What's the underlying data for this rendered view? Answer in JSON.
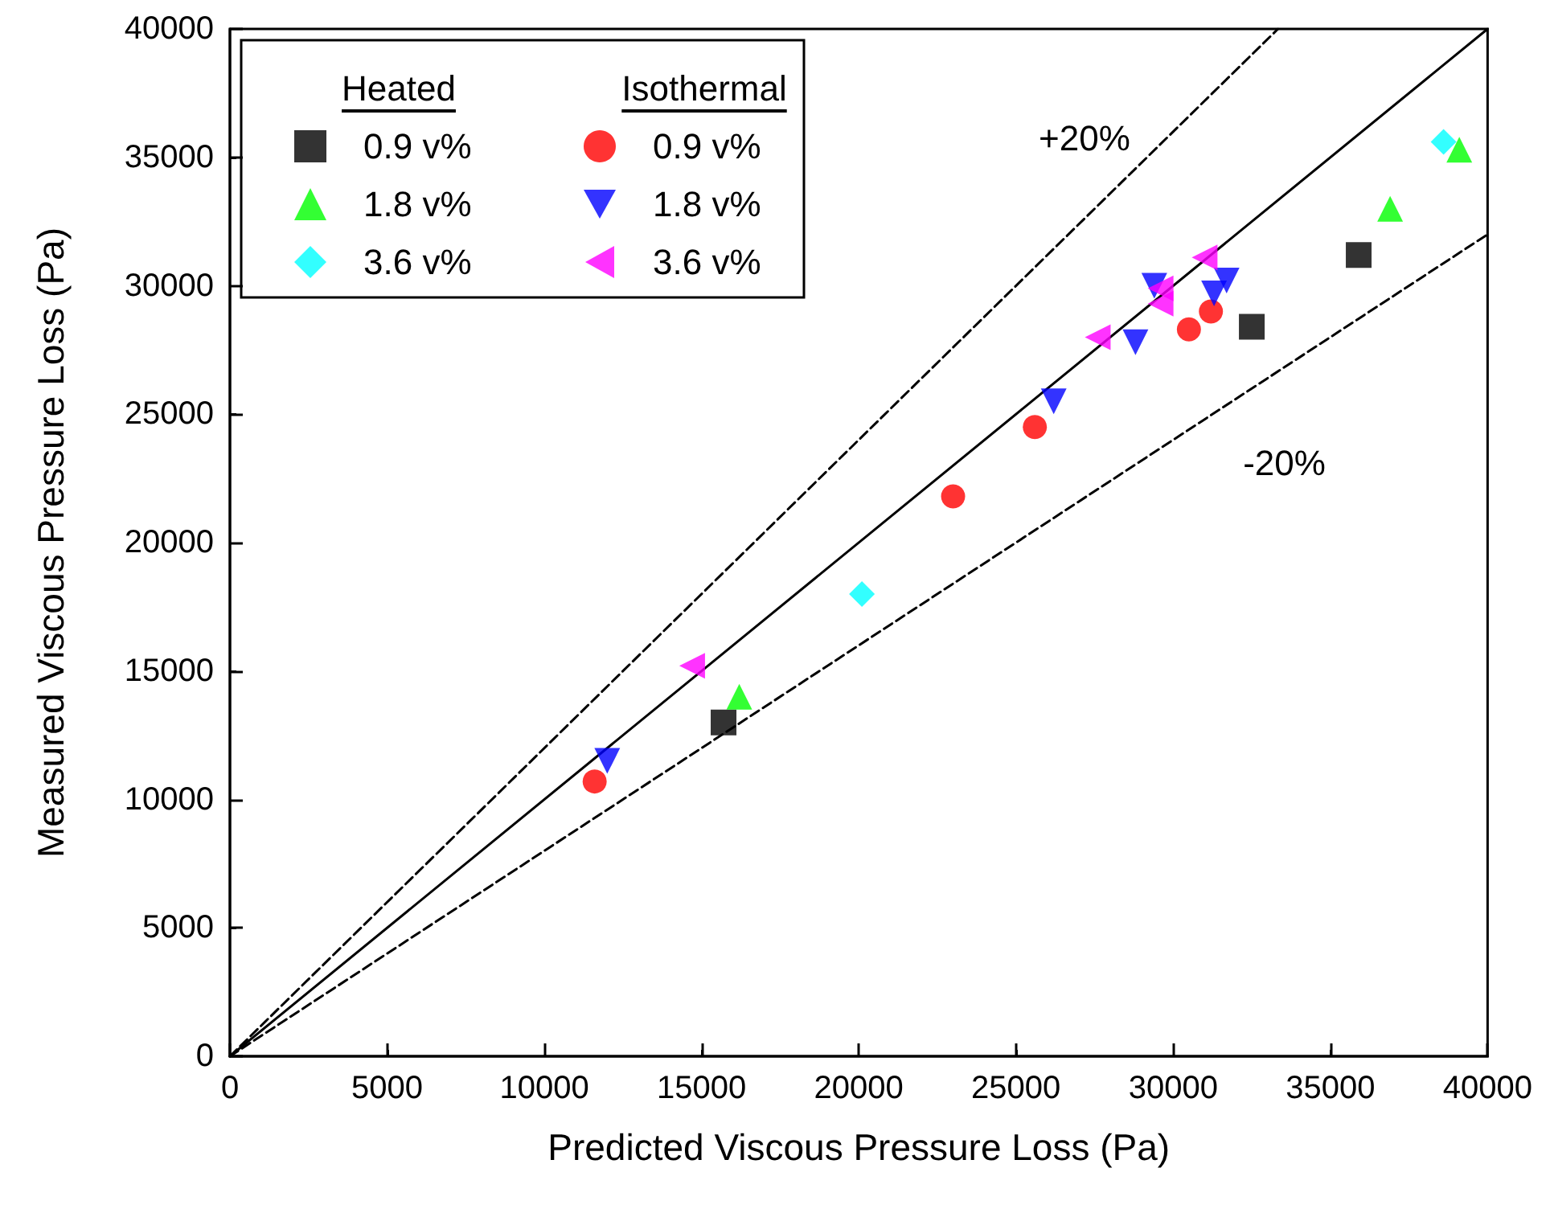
{
  "chart_data": {
    "type": "scatter",
    "xlabel": "Predicted Viscous Pressure Loss (Pa)",
    "ylabel": "Measured Viscous Pressure Loss (Pa)",
    "xlim": [
      0,
      40000
    ],
    "ylim": [
      0,
      40000
    ],
    "xticks": [
      0,
      5000,
      10000,
      15000,
      20000,
      25000,
      30000,
      35000,
      40000
    ],
    "yticks": [
      0,
      5000,
      10000,
      15000,
      20000,
      25000,
      30000,
      35000,
      40000
    ],
    "grid": false,
    "legend": "top left",
    "annotations": [
      "Heated",
      "Isothermal"
    ],
    "series": [
      {
        "name": "0.9 v%",
        "color": "#000000",
        "marker": "square",
        "x": [
          15700,
          32500,
          35900
        ],
        "values": [
          13000,
          28400,
          31200
        ]
      },
      {
        "name": "1.8 v%",
        "color": "#00ff00",
        "marker": "triangle",
        "x": [
          16200,
          36900,
          39100
        ],
        "values": [
          14000,
          33000,
          35300
        ]
      },
      {
        "name": "3.6 v%",
        "color": "#00ffff",
        "marker": "diamond",
        "x": [
          20100,
          38600
        ],
        "values": [
          18000,
          35600
        ]
      },
      {
        "name": "0.9 v%",
        "color": "#ff0000",
        "marker": "circle",
        "x": [
          11600,
          23000,
          25600,
          30500,
          31200
        ],
        "values": [
          10700,
          21800,
          24500,
          28300,
          29000
        ]
      },
      {
        "name": "1.8 v%",
        "color": "#0000ff",
        "marker": "triangle-down",
        "x": [
          12000,
          26200,
          28800,
          29400,
          31300,
          31700
        ],
        "values": [
          11500,
          25500,
          27800,
          30000,
          29700,
          30200
        ]
      },
      {
        "name": "3.6 v%",
        "color": "#ff00ff",
        "marker": "triangle-left",
        "x": [
          14700,
          27600,
          29600,
          29600,
          31000
        ],
        "values": [
          15200,
          28000,
          29900,
          29300,
          31100
        ]
      },
      {
        "type": "line",
        "color": "#000000",
        "line_style": "solid",
        "x": [
          0,
          40000
        ],
        "values": [
          0,
          40000
        ]
      },
      {
        "type": "line",
        "name": "+20%",
        "color": "#000000",
        "line_style": "dashed",
        "x": [
          0,
          33333
        ],
        "values": [
          0,
          40000
        ]
      },
      {
        "type": "line",
        "name": "-20%",
        "color": "#000000",
        "line_style": "dashed",
        "x": [
          0,
          40000
        ],
        "values": [
          0,
          32000
        ]
      }
    ]
  }
}
